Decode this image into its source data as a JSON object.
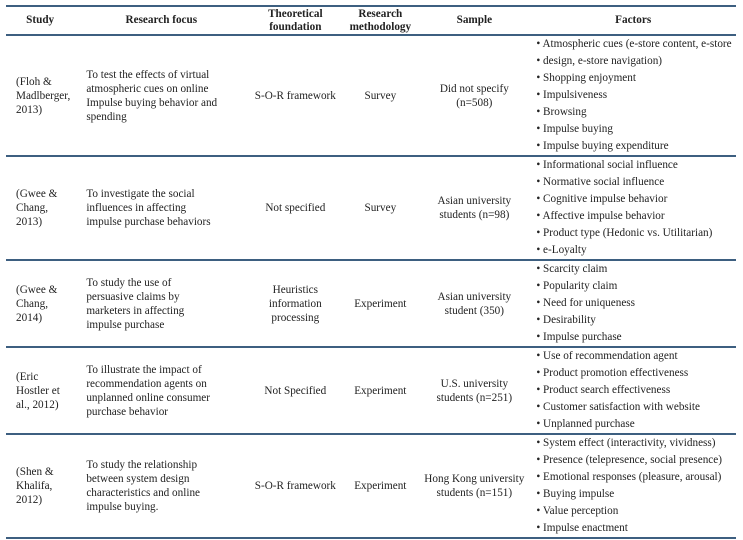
{
  "headers": [
    "Study",
    "Research focus",
    "Theoretical foundation",
    "Research methodology",
    "Sample",
    "Factors"
  ],
  "rows": [
    {
      "study": "(Floh & Madlberger, 2013)",
      "focus": "To test the effects of virtual atmospheric cues on online Impulse buying behavior and spending",
      "theory": "S-O-R framework",
      "method": "Survey",
      "sample": "Did not specify (n=508)",
      "factors": [
        "Atmospheric cues (e-store content, e-store",
        "design, e-store navigation)",
        "Shopping enjoyment",
        "Impulsiveness",
        "Browsing",
        "Impulse buying",
        "Impulse buying expenditure"
      ]
    },
    {
      "study": "(Gwee & Chang, 2013)",
      "focus": "To investigate the social influences in affecting impulse purchase behaviors",
      "theory": "Not specified",
      "method": "Survey",
      "sample": "Asian university students (n=98)",
      "factors": [
        "Informational social influence",
        "Normative social influence",
        "Cognitive impulse behavior",
        "Affective impulse behavior",
        "Product type (Hedonic vs. Utilitarian)",
        "e-Loyalty"
      ]
    },
    {
      "study": "(Gwee & Chang, 2014)",
      "focus": "To study the use of persuasive claims by marketers in affecting impulse purchase",
      "theory": "Heuristics information processing",
      "method": "Experiment",
      "sample": "Asian university student (350)",
      "factors": [
        "Scarcity claim",
        "Popularity claim",
        "Need for uniqueness",
        "Desirability",
        "Impulse purchase"
      ]
    },
    {
      "study": "(Eric Hostler et al., 2012)",
      "focus": "To illustrate the impact of recommendation agents on unplanned online consumer purchase behavior",
      "theory": "Not Specified",
      "method": "Experiment",
      "sample": "U.S. university students (n=251)",
      "factors": [
        "Use of recommendation agent",
        "Product promotion effectiveness",
        "Product search effectiveness",
        "Customer satisfaction with website",
        "Unplanned purchase"
      ]
    },
    {
      "study": "(Shen & Khalifa, 2012)",
      "focus": "To study the relationship between system design characteristics and online impulse buying.",
      "theory": "S-O-R framework",
      "method": "Experiment",
      "sample": "Hong Kong university students (n=151)",
      "factors": [
        "System effect (interactivity, vividness)",
        "Presence (telepresence, social presence)",
        "Emotional responses (pleasure, arousal)",
        "Buying impulse",
        "Value perception",
        "Impulse enactment"
      ]
    }
  ]
}
